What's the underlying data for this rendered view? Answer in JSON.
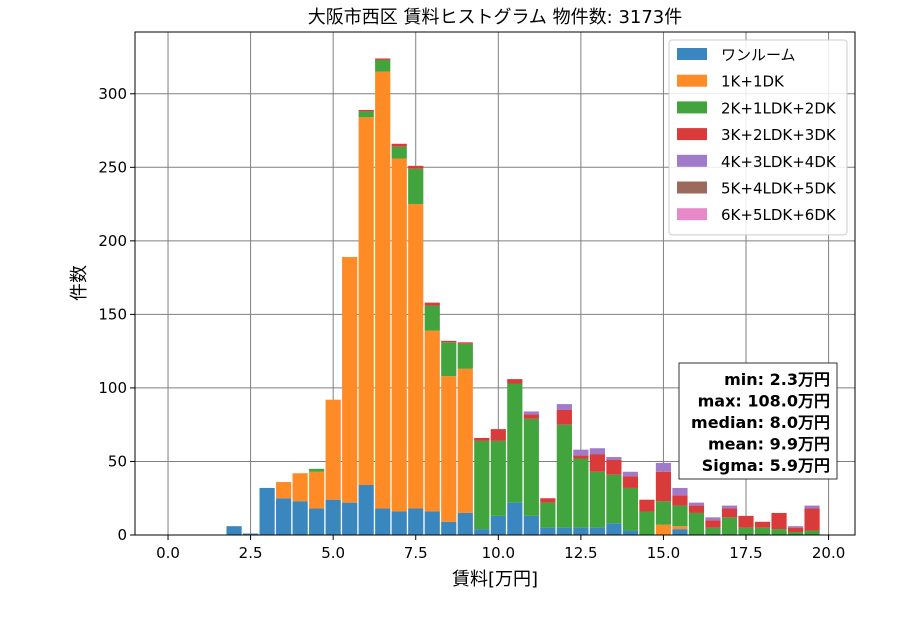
{
  "chart_data": {
    "type": "bar",
    "stacked": true,
    "title": "大阪市西区 賃料ヒストグラム  物件数: 3173件",
    "xlabel": "賃料[万円]",
    "ylabel": "件数",
    "xlim": [
      -1.0,
      20.8
    ],
    "ylim": [
      0,
      342
    ],
    "xticks": [
      0.0,
      2.5,
      5.0,
      7.5,
      10.0,
      12.5,
      15.0,
      17.5,
      20.0
    ],
    "xtick_labels": [
      "0.0",
      "2.5",
      "5.0",
      "7.5",
      "10.0",
      "12.5",
      "15.0",
      "17.5",
      "20.0"
    ],
    "yticks": [
      0,
      50,
      100,
      150,
      200,
      250,
      300
    ],
    "ytick_labels": [
      "0",
      "50",
      "100",
      "150",
      "200",
      "250",
      "300"
    ],
    "grid": true,
    "legend_position": "top-right",
    "bin_width": 0.5,
    "x": [
      2.0,
      2.5,
      3.0,
      3.5,
      4.0,
      4.5,
      5.0,
      5.5,
      6.0,
      6.5,
      7.0,
      7.5,
      8.0,
      8.5,
      9.0,
      9.5,
      10.0,
      10.5,
      11.0,
      11.5,
      12.0,
      12.5,
      13.0,
      13.5,
      14.0,
      14.5,
      15.0,
      15.5,
      16.0,
      16.5,
      17.0,
      17.5,
      18.0,
      18.5,
      19.0,
      19.5
    ],
    "series": [
      {
        "name": "ワンルーム",
        "color": "#3a87c0",
        "values": [
          6,
          1,
          32,
          25,
          23,
          18,
          24,
          22,
          34,
          18,
          16,
          18,
          16,
          9,
          15,
          4,
          13,
          22,
          13,
          5,
          5,
          5,
          5,
          8,
          3,
          0,
          0,
          4,
          0,
          0,
          0,
          0,
          0,
          0,
          0,
          0
        ]
      },
      {
        "name": "1K+1DK",
        "color": "#ff8b26",
        "values": [
          0,
          0,
          0,
          11,
          19,
          25,
          68,
          167,
          250,
          297,
          240,
          207,
          123,
          99,
          98,
          0,
          0,
          0,
          0,
          0,
          0,
          0,
          0,
          0,
          0,
          0,
          7,
          2,
          0,
          0,
          0,
          0,
          0,
          0,
          0,
          0
        ]
      },
      {
        "name": "2K+1LDK+2DK",
        "color": "#41a43c",
        "values": [
          0,
          0,
          0,
          0,
          0,
          2,
          0,
          0,
          4,
          8,
          8,
          24,
          17,
          23,
          17,
          60,
          51,
          81,
          66,
          17,
          70,
          47,
          38,
          33,
          29,
          16,
          16,
          14,
          15,
          5,
          12,
          5,
          5,
          4,
          2,
          3
        ]
      },
      {
        "name": "3K+2LDK+3DK",
        "color": "#d83b3a",
        "values": [
          0,
          0,
          0,
          0,
          0,
          0,
          0,
          0,
          1,
          1,
          2,
          2,
          2,
          1,
          1,
          2,
          8,
          3,
          3,
          3,
          10,
          2,
          12,
          10,
          8,
          8,
          20,
          7,
          5,
          5,
          6,
          8,
          4,
          11,
          3,
          15
        ]
      },
      {
        "name": "4K+3LDK+4DK",
        "color": "#a07bc9",
        "values": [
          0,
          0,
          0,
          0,
          0,
          0,
          0,
          0,
          0,
          0,
          0,
          0,
          0,
          0,
          0,
          0,
          0,
          0,
          2,
          0,
          4,
          4,
          4,
          2,
          3,
          0,
          6,
          5,
          2,
          2,
          2,
          0,
          0,
          0,
          1,
          2
        ]
      },
      {
        "name": "5K+4LDK+5DK",
        "color": "#9c6a5c",
        "values": [
          0,
          0,
          0,
          0,
          0,
          0,
          0,
          0,
          0,
          0,
          0,
          0,
          0,
          0,
          0,
          0,
          0,
          0,
          0,
          0,
          0,
          0,
          0,
          0,
          0,
          0,
          0,
          0,
          0,
          0,
          0,
          0,
          0,
          0,
          0,
          0
        ]
      },
      {
        "name": "6K+5LDK+6DK",
        "color": "#e789c9",
        "values": [
          0,
          0,
          0,
          0,
          0,
          0,
          0,
          0,
          0,
          0,
          0,
          0,
          0,
          0,
          0,
          0,
          0,
          0,
          0,
          0,
          0,
          0,
          0,
          0,
          0,
          0,
          0,
          0,
          0,
          0,
          0,
          0,
          0,
          0,
          0,
          0
        ]
      }
    ],
    "annotations": [
      "min: 2.3万円",
      "max: 108.0万円",
      "median: 8.0万円",
      "mean: 9.9万円",
      "Sigma: 5.9万円"
    ]
  }
}
